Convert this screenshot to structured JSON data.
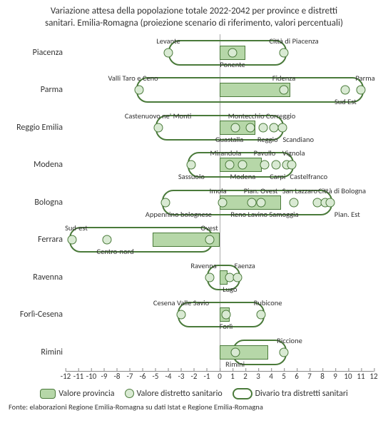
{
  "title_line1": "Variazione attesa della popolazione totale 2022-2042 per province e distretti",
  "title_line2": "sanitari. Emilia-Romagna (proiezione scenario di riferimento, valori percentuali)",
  "x_min": -12,
  "x_max": 12,
  "x_ticks": [
    -12,
    -11,
    -10,
    -9,
    -8,
    -7,
    -6,
    -5,
    -4,
    -3,
    -2,
    -1,
    0,
    1,
    2,
    3,
    4,
    5,
    6,
    7,
    8,
    9,
    10,
    11,
    12
  ],
  "bar_fill": "#b6d7a8",
  "dot_fill": "#d9ead3",
  "border_color": "#4a7a3a",
  "rows": [
    {
      "label": "Piacenza",
      "bar": [
        0,
        2
      ],
      "range": [
        -4,
        5.2
      ],
      "dots": [
        {
          "v": -4,
          "name": "Levante",
          "pos": "above",
          "dx": 0
        },
        {
          "v": 1,
          "name": "Ponente",
          "pos": "below",
          "dx": 0
        },
        {
          "v": 5,
          "name": "Città di Piacenza",
          "pos": "above",
          "dx": 14
        }
      ]
    },
    {
      "label": "Parma",
      "bar": [
        0,
        5.5
      ],
      "range": [
        -6.5,
        11.2
      ],
      "dots": [
        {
          "v": -6.3,
          "name": "Valli Taro e Ceno",
          "pos": "above",
          "dx": -8
        },
        {
          "v": 5,
          "name": "Fidenza",
          "pos": "above",
          "dx": 0
        },
        {
          "v": 9.8,
          "name": "Sud Est",
          "pos": "below",
          "dx": 0
        },
        {
          "v": 11,
          "name": "Parma",
          "pos": "above",
          "dx": 6
        }
      ]
    },
    {
      "label": "Reggio Emilia",
      "bar": [
        0,
        2.8
      ],
      "range": [
        -5,
        5
      ],
      "dots": [
        {
          "v": -4.8,
          "name": "Castenuovo ne' Monti",
          "pos": "above",
          "dx": 0
        },
        {
          "v": 1.2,
          "name": "Guastalla",
          "pos": "below",
          "dx": -8
        },
        {
          "v": 2.4,
          "name": "Montecchio",
          "pos": "above",
          "dx": -6
        },
        {
          "v": 3.4,
          "name": "Reggio",
          "pos": "below",
          "dx": 6
        },
        {
          "v": 4.2,
          "name": "Correggio",
          "pos": "above",
          "dx": 10
        },
        {
          "v": 4.9,
          "name": "Scandiano",
          "pos": "below",
          "dx": 22
        }
      ]
    },
    {
      "label": "Modena",
      "bar": [
        0,
        3.3
      ],
      "range": [
        -2.5,
        5.8
      ],
      "dots": [
        {
          "v": -2.2,
          "name": "Sassuolo",
          "pos": "below",
          "dx": 0
        },
        {
          "v": 0.8,
          "name": "Mirandola",
          "pos": "above",
          "dx": -6
        },
        {
          "v": 1.8,
          "name": "Modena",
          "pos": "below",
          "dx": 0
        },
        {
          "v": 3.5,
          "name": "Pavullo",
          "pos": "above",
          "dx": 0
        },
        {
          "v": 4.4,
          "name": "Carpi",
          "pos": "below",
          "dx": 2
        },
        {
          "v": 5.2,
          "name": "Vignola",
          "pos": "above",
          "dx": 10
        },
        {
          "v": 5.6,
          "name": "Castelfranco",
          "pos": "below",
          "dx": 24
        }
      ]
    },
    {
      "label": "Bologna",
      "bar": [
        0,
        4.8
      ],
      "range": [
        -4.5,
        8.8
      ],
      "dots": [
        {
          "v": -4.2,
          "name": "Appennino bolognese",
          "pos": "below",
          "dx": 18
        },
        {
          "v": 0.2,
          "name": "Imola",
          "pos": "above",
          "dx": -6
        },
        {
          "v": 2.5,
          "name": "Reno Lavino Samoggia",
          "pos": "below",
          "dx": 18
        },
        {
          "v": 3.2,
          "name": "Pian. Ovest",
          "pos": "above",
          "dx": 0
        },
        {
          "v": 5.8,
          "name": "San Lazzaro",
          "pos": "above",
          "dx": 8
        },
        {
          "v": 7.6,
          "name": "",
          "pos": "above",
          "dx": 0
        },
        {
          "v": 8.2,
          "name": "Città di Bologna",
          "pos": "above",
          "dx": 24
        },
        {
          "v": 8.6,
          "name": "Pian. Est",
          "pos": "below",
          "dx": 24
        }
      ]
    },
    {
      "label": "Ferrara",
      "bar": [
        -5.2,
        0
      ],
      "range": [
        -11.7,
        -0.5
      ],
      "dots": [
        {
          "v": -11.5,
          "name": "Sud-est",
          "pos": "above",
          "dx": 6
        },
        {
          "v": -8.8,
          "name": "Centro-nord",
          "pos": "below",
          "dx": 12
        },
        {
          "v": -0.8,
          "name": "Ovest",
          "pos": "above",
          "dx": 0
        }
      ]
    },
    {
      "label": "Ravenna",
      "bar": [
        0,
        0.6
      ],
      "range": [
        -1,
        1.6
      ],
      "dots": [
        {
          "v": -0.8,
          "name": "Ravenna",
          "pos": "above",
          "dx": -8
        },
        {
          "v": 0.8,
          "name": "Lugo",
          "pos": "below",
          "dx": 0
        },
        {
          "v": 1.4,
          "name": "Faenza",
          "pos": "above",
          "dx": 10
        }
      ]
    },
    {
      "label": "Forlì-Cesena",
      "bar": [
        0,
        0.8
      ],
      "range": [
        -3.3,
        3.5
      ],
      "dots": [
        {
          "v": -3,
          "name": "Cesena Valle Savio",
          "pos": "above",
          "dx": 0
        },
        {
          "v": 0.5,
          "name": "Forlì",
          "pos": "below",
          "dx": 0
        },
        {
          "v": 3.2,
          "name": "Rubicone",
          "pos": "above",
          "dx": 10
        }
      ]
    },
    {
      "label": "Rimini",
      "bar": [
        0,
        3.8
      ],
      "range": [
        1,
        5.2
      ],
      "dots": [
        {
          "v": 1.2,
          "name": "Rimini",
          "pos": "below",
          "dx": 0
        },
        {
          "v": 5,
          "name": "Riccione",
          "pos": "above",
          "dx": 8
        }
      ]
    }
  ],
  "legend": {
    "bar": "Valore provincia",
    "dot": "Valore distretto sanitario",
    "range": "Divario tra distretti sanitari"
  },
  "source": "Fonte: elaborazioni Regione Emilia-Romagna su dati Istat e Regione Emilia-Romagna"
}
